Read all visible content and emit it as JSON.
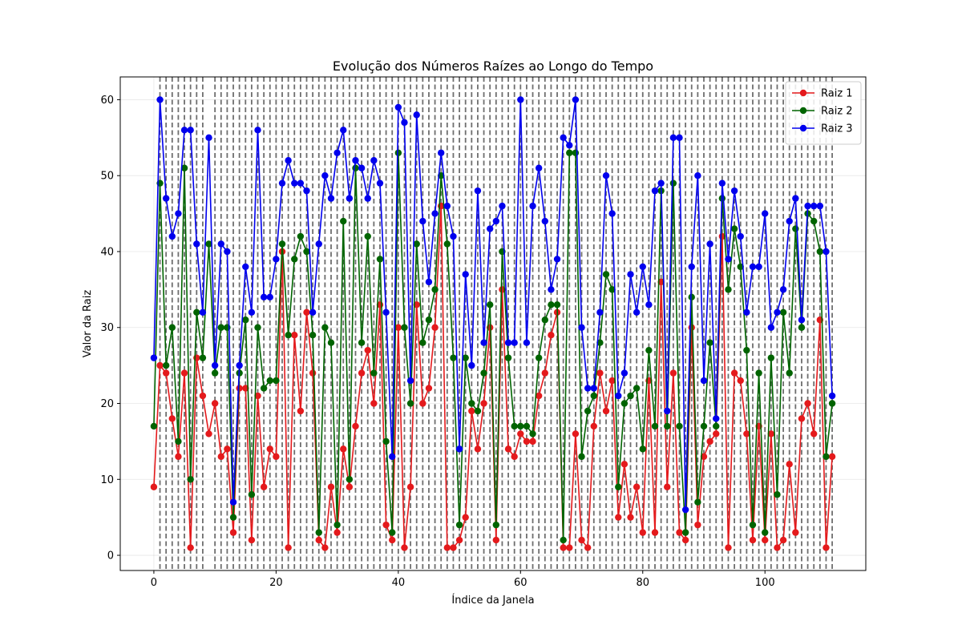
{
  "chart_data": {
    "type": "line",
    "title": "Evolução dos Números Raízes ao Longo do Tempo",
    "xlabel": "Índice da Janela",
    "ylabel": "Valor da Raiz",
    "xlim": [
      -5.5,
      116.5
    ],
    "ylim": [
      -2,
      63
    ],
    "xticks": [
      0,
      20,
      40,
      60,
      80,
      100
    ],
    "yticks": [
      0,
      10,
      20,
      30,
      40,
      50,
      60
    ],
    "grid": true,
    "legend_position": "top-right",
    "vlines": [
      1,
      2,
      3,
      4,
      5,
      6,
      7,
      8,
      10,
      11,
      12,
      13,
      14,
      15,
      16,
      17,
      18,
      19,
      20,
      21,
      22,
      23,
      24,
      25,
      26,
      27,
      28,
      29,
      30,
      31,
      32,
      33,
      34,
      35,
      36,
      37,
      38,
      39,
      40,
      41,
      42,
      43,
      44,
      45,
      46,
      47,
      48,
      49,
      50,
      51,
      52,
      53,
      54,
      55,
      56,
      57,
      58,
      59,
      60,
      61,
      62,
      63,
      64,
      65,
      66,
      67,
      68,
      69,
      70,
      71,
      72,
      73,
      74,
      75,
      76,
      77,
      78,
      79,
      80,
      81,
      82,
      83,
      84,
      85,
      86,
      87,
      88,
      89,
      90,
      91,
      92,
      93,
      94,
      95,
      96,
      97,
      98,
      99,
      100,
      101,
      102,
      103,
      104,
      105,
      106,
      107,
      108,
      109,
      110,
      111
    ],
    "x": [
      0,
      1,
      2,
      3,
      4,
      5,
      6,
      7,
      8,
      9,
      10,
      11,
      12,
      13,
      14,
      15,
      16,
      17,
      18,
      19,
      20,
      21,
      22,
      23,
      24,
      25,
      26,
      27,
      28,
      29,
      30,
      31,
      32,
      33,
      34,
      35,
      36,
      37,
      38,
      39,
      40,
      41,
      42,
      43,
      44,
      45,
      46,
      47,
      48,
      49,
      50,
      51,
      52,
      53,
      54,
      55,
      56,
      57,
      58,
      59,
      60,
      61,
      62,
      63,
      64,
      65,
      66,
      67,
      68,
      69,
      70,
      71,
      72,
      73,
      74,
      75,
      76,
      77,
      78,
      79,
      80,
      81,
      82,
      83,
      84,
      85,
      86,
      87,
      88,
      89,
      90,
      91,
      92,
      93,
      94,
      95,
      96,
      97,
      98,
      99,
      100,
      101,
      102,
      103,
      104,
      105,
      106,
      107,
      108,
      109,
      110,
      111
    ],
    "series": [
      {
        "name": "Raiz 1",
        "color": "#e41a1c",
        "values": [
          9,
          25,
          24,
          18,
          13,
          24,
          1,
          26,
          21,
          16,
          20,
          13,
          14,
          3,
          22,
          22,
          2,
          21,
          9,
          14,
          13,
          40,
          1,
          29,
          19,
          32,
          24,
          2,
          1,
          9,
          3,
          14,
          9,
          17,
          24,
          27,
          20,
          33,
          4,
          2,
          30,
          1,
          9,
          33,
          20,
          22,
          30,
          46,
          1,
          1,
          2,
          5,
          19,
          14,
          20,
          30,
          2,
          35,
          14,
          13,
          16,
          15,
          15,
          21,
          24,
          29,
          32,
          1,
          1,
          16,
          2,
          1,
          17,
          24,
          19,
          23,
          5,
          12,
          5,
          9,
          3,
          23,
          3,
          36,
          9,
          24,
          3,
          2,
          30,
          4,
          13,
          15,
          16,
          42,
          1,
          24,
          23,
          16,
          2,
          17,
          2,
          16,
          1,
          2,
          12,
          3,
          18,
          20,
          16,
          31,
          1,
          13
        ]
      },
      {
        "name": "Raiz 2",
        "color": "#006400",
        "values": [
          17,
          49,
          25,
          30,
          15,
          51,
          10,
          32,
          26,
          41,
          24,
          30,
          30,
          5,
          24,
          31,
          8,
          30,
          22,
          23,
          23,
          41,
          29,
          39,
          42,
          40,
          29,
          3,
          30,
          28,
          4,
          44,
          10,
          51,
          28,
          42,
          24,
          39,
          15,
          3,
          53,
          30,
          20,
          41,
          28,
          31,
          35,
          50,
          41,
          26,
          4,
          26,
          20,
          19,
          24,
          33,
          4,
          40,
          26,
          17,
          17,
          17,
          16,
          26,
          31,
          33,
          33,
          2,
          53,
          53,
          13,
          19,
          21,
          28,
          37,
          35,
          9,
          20,
          21,
          22,
          14,
          27,
          17,
          48,
          17,
          49,
          17,
          3,
          34,
          7,
          17,
          28,
          17,
          47,
          35,
          43,
          38,
          27,
          4,
          24,
          3,
          26,
          8,
          32,
          24,
          43,
          30,
          45,
          44,
          40,
          13,
          20
        ]
      },
      {
        "name": "Raiz 3",
        "color": "#0000ee",
        "values": [
          26,
          60,
          47,
          42,
          45,
          56,
          56,
          41,
          32,
          55,
          25,
          41,
          40,
          7,
          25,
          38,
          32,
          56,
          34,
          34,
          39,
          49,
          52,
          49,
          49,
          48,
          32,
          41,
          50,
          47,
          53,
          56,
          47,
          52,
          51,
          47,
          52,
          49,
          32,
          13,
          59,
          57,
          23,
          58,
          44,
          36,
          45,
          53,
          46,
          42,
          14,
          37,
          25,
          48,
          28,
          43,
          44,
          46,
          28,
          28,
          60,
          28,
          46,
          51,
          44,
          35,
          39,
          55,
          54,
          60,
          30,
          22,
          22,
          32,
          50,
          45,
          21,
          24,
          37,
          32,
          38,
          33,
          48,
          49,
          19,
          55,
          55,
          6,
          38,
          50,
          23,
          41,
          18,
          49,
          39,
          48,
          42,
          32,
          38,
          38,
          45,
          30,
          32,
          35,
          44,
          47,
          31,
          46,
          46,
          46,
          40,
          21
        ]
      }
    ]
  }
}
